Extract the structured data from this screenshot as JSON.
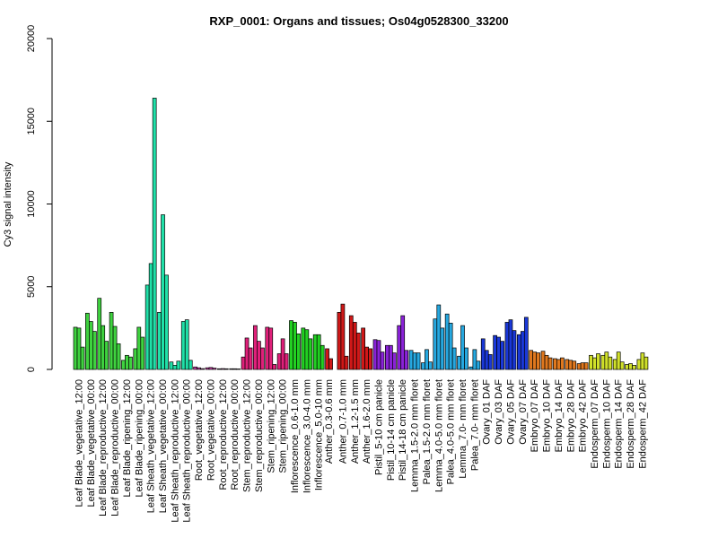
{
  "chart_data": {
    "type": "bar",
    "title": "RXP_0001: Organs and tissues; Os04g0528300_33200",
    "xlabel": "",
    "ylabel": "Cy3 signal intensity",
    "ylim": [
      0,
      20000
    ],
    "yticks": [
      "0",
      "5000",
      "10000",
      "15000",
      "20000"
    ],
    "grid": false,
    "legend": "none",
    "groups": [
      {
        "label": "Leaf Blade_vegetative_12:00",
        "color": "#3fd23f",
        "values": [
          2550,
          2500,
          1350
        ]
      },
      {
        "label": "Leaf Blade_vegetative_00:00",
        "color": "#3fd23f",
        "values": [
          3400,
          2900,
          2300
        ]
      },
      {
        "label": "Leaf Blade_reproductive_12:00",
        "color": "#3fd23f",
        "values": [
          4300,
          2650,
          1700
        ]
      },
      {
        "label": "Leaf Blade_reproductive_00:00",
        "color": "#3fd23f",
        "values": [
          3450,
          2600,
          1550
        ]
      },
      {
        "label": "Leaf Blade_ripening_12:00",
        "color": "#3fd23f",
        "values": [
          550,
          850,
          750
        ]
      },
      {
        "label": "Leaf Blade_ripening_00:00",
        "color": "#3fd23f",
        "values": [
          1250,
          2550,
          1950
        ]
      },
      {
        "label": "Leaf Sheath_vegetative_12:00",
        "color": "#20e0a8",
        "values": [
          5100,
          6400,
          16400
        ]
      },
      {
        "label": "Leaf Sheath_vegetative_00:00",
        "color": "#20e0a8",
        "values": [
          3450,
          9350,
          5700
        ]
      },
      {
        "label": "Leaf Sheath_reproductive_12:00",
        "color": "#20e0a8",
        "values": [
          450,
          250,
          500
        ]
      },
      {
        "label": "Leaf Sheath_reproductive_00:00",
        "color": "#20e0a8",
        "values": [
          2900,
          3000,
          550
        ]
      },
      {
        "label": "Root_vegetative_12:00",
        "color": "#c03aa0",
        "values": [
          150,
          100,
          50
        ]
      },
      {
        "label": "Root_vegetative_00:00",
        "color": "#c03aa0",
        "values": [
          100,
          120,
          80
        ]
      },
      {
        "label": "Root_reproductive_12:00",
        "color": "#c03aa0",
        "values": [
          40,
          50,
          40
        ]
      },
      {
        "label": "Root_reproductive_00:00",
        "color": "#c03aa0",
        "values": [
          40,
          40,
          30
        ]
      },
      {
        "label": "Stem_reproductive_12:00",
        "color": "#e0207a",
        "values": [
          750,
          1900,
          1300
        ]
      },
      {
        "label": "Stem_reproductive_00:00",
        "color": "#e0207a",
        "values": [
          2650,
          1700,
          1300
        ]
      },
      {
        "label": "Stem_ripening_12:00",
        "color": "#e0207a",
        "values": [
          2550,
          2500,
          300
        ]
      },
      {
        "label": "Stem_ripening_00:00",
        "color": "#e0207a",
        "values": [
          950,
          1850,
          950
        ]
      },
      {
        "label": "Inflorescence_0.6-1.0 mm",
        "color": "#22d022",
        "values": [
          2950,
          2850,
          2150
        ]
      },
      {
        "label": "Inflorescence_3.0-4.0 mm",
        "color": "#22d022",
        "values": [
          2500,
          2400,
          1850
        ]
      },
      {
        "label": "Inflorescence_5.0-10 mm",
        "color": "#22d022",
        "values": [
          2100,
          2100,
          1450
        ]
      },
      {
        "label": "Anther_0.3-0.6 mm",
        "color": "#d01818",
        "values": [
          1250,
          650
        ]
      },
      {
        "label": "Anther_0.7-1.0 mm",
        "color": "#d01818",
        "values": [
          3450,
          3950,
          800
        ]
      },
      {
        "label": "Anther_1.2-1.5 mm",
        "color": "#d01818",
        "values": [
          3250,
          2850,
          2200
        ]
      },
      {
        "label": "Anther_1.6-2.0 mm",
        "color": "#d01818",
        "values": [
          2500,
          1350,
          1250
        ]
      },
      {
        "label": "Pistil_5-10 cm panicle",
        "color": "#8a22d8",
        "values": [
          1800,
          1750,
          1050
        ]
      },
      {
        "label": "Pistil_10-14 cm panicle",
        "color": "#8a22d8",
        "values": [
          1450,
          1450,
          1000
        ]
      },
      {
        "label": "Pistil_14-18 cm panicle",
        "color": "#8a22d8",
        "values": [
          2650,
          3250,
          1150
        ]
      },
      {
        "label": "Lemma_1.5-2.0 mm floret",
        "color": "#26a8e0",
        "values": [
          1150,
          1000,
          1000
        ]
      },
      {
        "label": "Palea_1.5-2.0 mm floret",
        "color": "#26a8e0",
        "values": [
          400,
          1200,
          450
        ]
      },
      {
        "label": "Lemma_4.0-5.0 mm floret",
        "color": "#26a8e0",
        "values": [
          3050,
          3900,
          2500
        ]
      },
      {
        "label": "Palea_4.0-5.0 mm floret",
        "color": "#26a8e0",
        "values": [
          3350,
          2800,
          1300
        ]
      },
      {
        "label": "Lemma_7.0- mm floret",
        "color": "#26a8e0",
        "values": [
          800,
          2650,
          1300
        ]
      },
      {
        "label": "Palea_7.0- mm floret",
        "color": "#26a8e0",
        "values": [
          150,
          1200,
          500
        ]
      },
      {
        "label": "Ovary_01 DAF",
        "color": "#1a38d8",
        "values": [
          1850,
          1150,
          900
        ]
      },
      {
        "label": "Ovary_03 DAF",
        "color": "#1a38d8",
        "values": [
          2050,
          1950,
          1700
        ]
      },
      {
        "label": "Ovary_05 DAF",
        "color": "#1a38d8",
        "values": [
          2850,
          3000,
          2350
        ]
      },
      {
        "label": "Ovary_07 DAF",
        "color": "#1a38d8",
        "values": [
          2100,
          2300,
          3150
        ]
      },
      {
        "label": "Embryo_07 DAF",
        "color": "#e0781e",
        "values": [
          1150,
          1050,
          1000
        ]
      },
      {
        "label": "Embryo_10 DAF",
        "color": "#e0781e",
        "values": [
          1100,
          850,
          700
        ]
      },
      {
        "label": "Embryo_14 DAF",
        "color": "#e0781e",
        "values": [
          650,
          600,
          700
        ]
      },
      {
        "label": "Embryo_28 DAF",
        "color": "#e0781e",
        "values": [
          600,
          550,
          500
        ]
      },
      {
        "label": "Embryo_42 DAF",
        "color": "#e0781e",
        "values": [
          350,
          400,
          400
        ]
      },
      {
        "label": "Endosperm_07 DAF",
        "color": "#d0e02a",
        "values": [
          850,
          700,
          950
        ]
      },
      {
        "label": "Endosperm_10 DAF",
        "color": "#d0e02a",
        "values": [
          850,
          1050,
          750
        ]
      },
      {
        "label": "Endosperm_14 DAF",
        "color": "#d0e02a",
        "values": [
          600,
          1050,
          450
        ]
      },
      {
        "label": "Endosperm_28 DAF",
        "color": "#d0e02a",
        "values": [
          300,
          350,
          250
        ]
      },
      {
        "label": "Endosperm_42 DAF",
        "color": "#d0e02a",
        "values": [
          600,
          1000,
          750
        ]
      }
    ]
  }
}
